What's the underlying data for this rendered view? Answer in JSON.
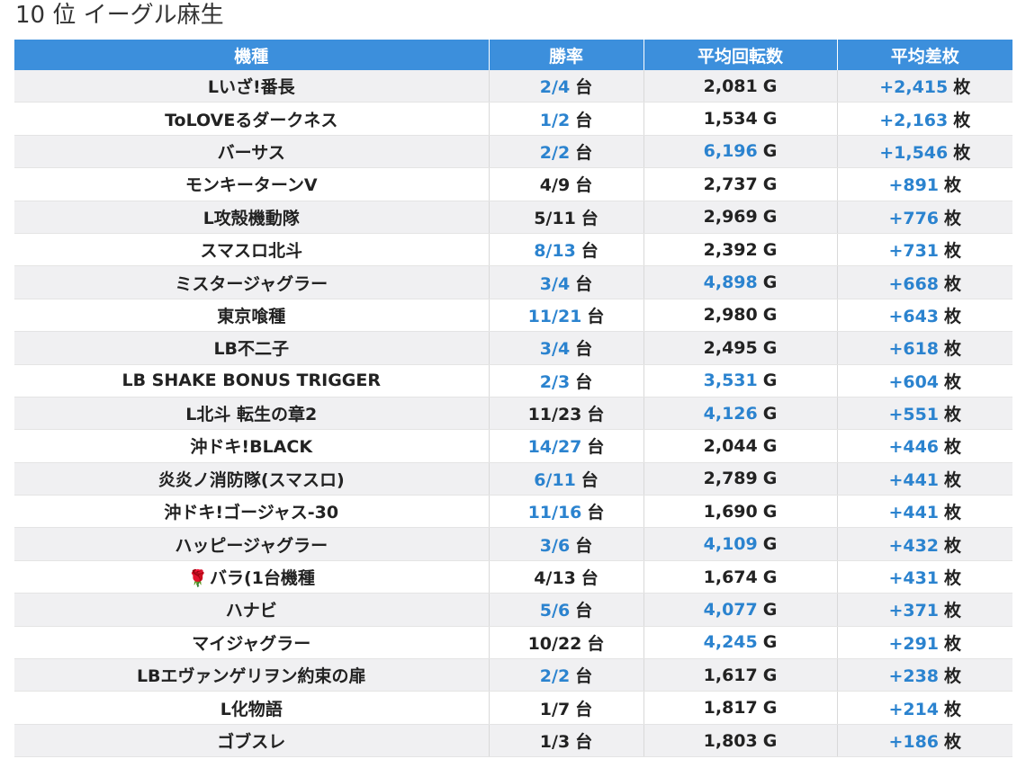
{
  "title": "10 位 イーグル麻生",
  "columns": {
    "machine": "機種",
    "win_rate": "勝率",
    "avg_spins": "平均回転数",
    "avg_diff": "平均差枚"
  },
  "units": {
    "machines": "台",
    "games": "G",
    "medals": "枚"
  },
  "colors": {
    "header": "#3c8fdc",
    "highlight": "#2b83cf"
  },
  "rows": [
    {
      "name": "Lいざ!番長",
      "win": "2/4",
      "win_hl": true,
      "spins": "2,081",
      "spins_hl": false,
      "diff": "+2,415",
      "diff_hl": true
    },
    {
      "name": "ToLOVEるダークネス",
      "win": "1/2",
      "win_hl": true,
      "spins": "1,534",
      "spins_hl": false,
      "diff": "+2,163",
      "diff_hl": true
    },
    {
      "name": "バーサス",
      "win": "2/2",
      "win_hl": true,
      "spins": "6,196",
      "spins_hl": true,
      "diff": "+1,546",
      "diff_hl": true
    },
    {
      "name": "モンキーターンV",
      "win": "4/9",
      "win_hl": false,
      "spins": "2,737",
      "spins_hl": false,
      "diff": "+891",
      "diff_hl": true
    },
    {
      "name": "L攻殻機動隊",
      "win": "5/11",
      "win_hl": false,
      "spins": "2,969",
      "spins_hl": false,
      "diff": "+776",
      "diff_hl": true
    },
    {
      "name": "スマスロ北斗",
      "win": "8/13",
      "win_hl": true,
      "spins": "2,392",
      "spins_hl": false,
      "diff": "+731",
      "diff_hl": true
    },
    {
      "name": "ミスタージャグラー",
      "win": "3/4",
      "win_hl": true,
      "spins": "4,898",
      "spins_hl": true,
      "diff": "+668",
      "diff_hl": true
    },
    {
      "name": "東京喰種",
      "win": "11/21",
      "win_hl": true,
      "spins": "2,980",
      "spins_hl": false,
      "diff": "+643",
      "diff_hl": true
    },
    {
      "name": "LB不二子",
      "win": "3/4",
      "win_hl": true,
      "spins": "2,495",
      "spins_hl": false,
      "diff": "+618",
      "diff_hl": true
    },
    {
      "name": "LB SHAKE BONUS TRIGGER",
      "win": "2/3",
      "win_hl": true,
      "spins": "3,531",
      "spins_hl": true,
      "diff": "+604",
      "diff_hl": true
    },
    {
      "name": "L北斗 転生の章2",
      "win": "11/23",
      "win_hl": false,
      "spins": "4,126",
      "spins_hl": true,
      "diff": "+551",
      "diff_hl": true
    },
    {
      "name": "沖ドキ!BLACK",
      "win": "14/27",
      "win_hl": true,
      "spins": "2,044",
      "spins_hl": false,
      "diff": "+446",
      "diff_hl": true
    },
    {
      "name": "炎炎ノ消防隊(スマスロ)",
      "win": "6/11",
      "win_hl": true,
      "spins": "2,789",
      "spins_hl": false,
      "diff": "+441",
      "diff_hl": true
    },
    {
      "name": "沖ドキ!ゴージャス-30",
      "win": "11/16",
      "win_hl": true,
      "spins": "1,690",
      "spins_hl": false,
      "diff": "+441",
      "diff_hl": true
    },
    {
      "name": "ハッピージャグラー",
      "win": "3/6",
      "win_hl": true,
      "spins": "4,109",
      "spins_hl": true,
      "diff": "+432",
      "diff_hl": true
    },
    {
      "name": "バラ(1台機種",
      "rose": "🌹",
      "win": "4/13",
      "win_hl": false,
      "spins": "1,674",
      "spins_hl": false,
      "diff": "+431",
      "diff_hl": true
    },
    {
      "name": "ハナビ",
      "win": "5/6",
      "win_hl": true,
      "spins": "4,077",
      "spins_hl": true,
      "diff": "+371",
      "diff_hl": true
    },
    {
      "name": "マイジャグラー",
      "win": "10/22",
      "win_hl": false,
      "spins": "4,245",
      "spins_hl": true,
      "diff": "+291",
      "diff_hl": true
    },
    {
      "name": "LBエヴァンゲリヲン約束の扉",
      "win": "2/2",
      "win_hl": true,
      "spins": "1,617",
      "spins_hl": false,
      "diff": "+238",
      "diff_hl": true
    },
    {
      "name": "L化物語",
      "win": "1/7",
      "win_hl": false,
      "spins": "1,817",
      "spins_hl": false,
      "diff": "+214",
      "diff_hl": true
    },
    {
      "name": "ゴブスレ",
      "win": "1/3",
      "win_hl": false,
      "spins": "1,803",
      "spins_hl": false,
      "diff": "+186",
      "diff_hl": true
    }
  ]
}
